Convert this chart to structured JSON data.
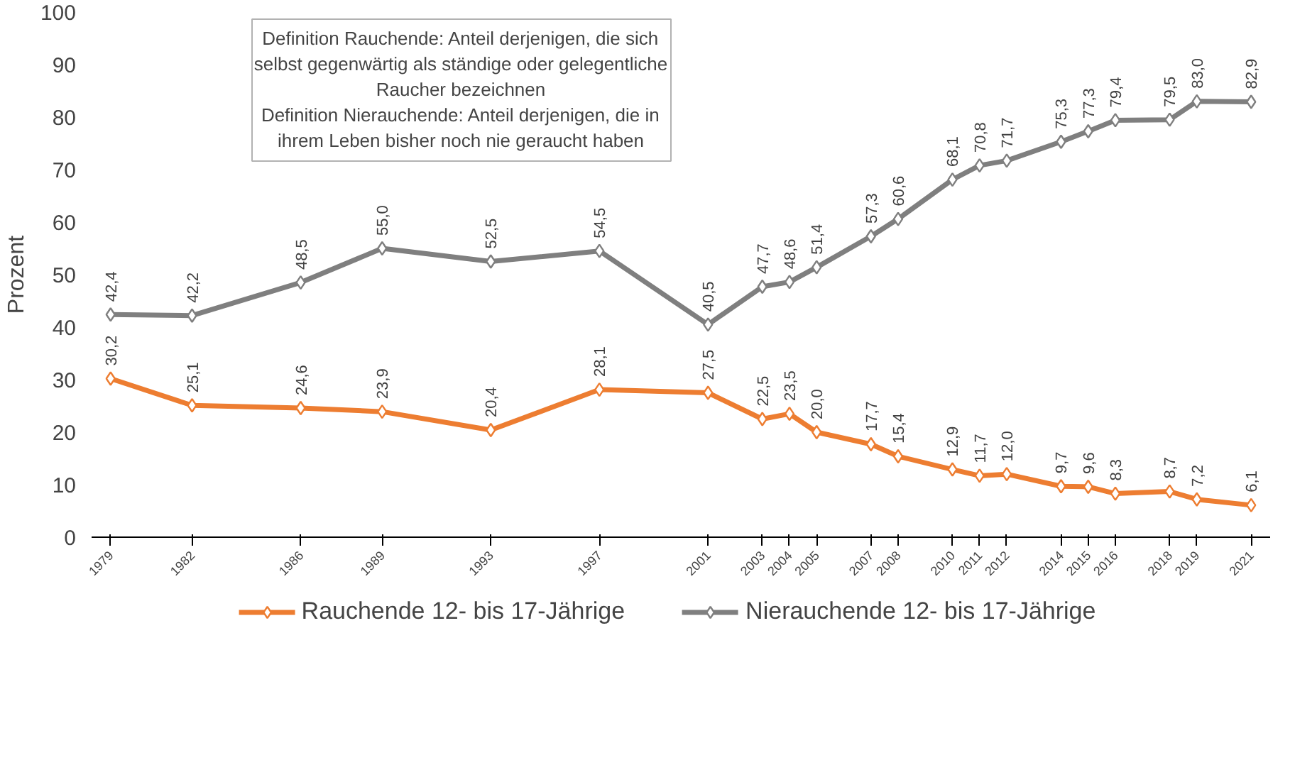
{
  "chart_data": {
    "type": "line",
    "ylabel": "Prozent",
    "annotations": [
      "Definition Rauchende: Anteil derjenigen, die sich selbst gegenwärtig als ständige oder gelegentliche Raucher bezeichnen",
      "Definition Nierauchende: Anteil derjenigen, die in ihrem Leben bisher noch nie geraucht haben"
    ],
    "x": [
      1979,
      1982,
      1986,
      1989,
      1993,
      1997,
      2001,
      2003,
      2004,
      2005,
      2007,
      2008,
      2010,
      2011,
      2012,
      2014,
      2015,
      2016,
      2018,
      2019,
      2021
    ],
    "xlim": [
      1978.3,
      2021.7
    ],
    "xticks": [
      1979,
      1982,
      1986,
      1989,
      1993,
      1997,
      2001,
      2003,
      2004,
      2005,
      2007,
      2008,
      2010,
      2011,
      2012,
      2014,
      2015,
      2016,
      2018,
      2019,
      2021
    ],
    "ylim": [
      0,
      100
    ],
    "yticks": [
      0,
      10,
      20,
      30,
      40,
      50,
      60,
      70,
      80,
      90,
      100
    ],
    "grid": false,
    "legend": "bottom",
    "marker": "diamond",
    "line_style": "solid",
    "series": [
      {
        "name": "Rauchende 12- bis 17-Jährige",
        "color": "#ed7d31",
        "values": [
          30.2,
          25.1,
          24.6,
          23.9,
          20.4,
          28.1,
          27.5,
          22.5,
          23.5,
          20.0,
          17.7,
          15.4,
          12.9,
          11.7,
          12.0,
          9.7,
          9.6,
          8.3,
          8.7,
          7.2,
          6.1
        ],
        "value_labels": [
          "30,2",
          "25,1",
          "24,6",
          "23,9",
          "20,4",
          "28,1",
          "27,5",
          "22,5",
          "23,5",
          "20,0",
          "17,7",
          "15,4",
          "12,9",
          "11,7",
          "12,0",
          "9,7",
          "9,6",
          "8,3",
          "8,7",
          "7,2",
          "6,1"
        ]
      },
      {
        "name": "Nierauchende 12- bis 17-Jährige",
        "color": "#7f7f7f",
        "values": [
          42.4,
          42.2,
          48.5,
          55.0,
          52.5,
          54.5,
          40.5,
          47.7,
          48.6,
          51.4,
          57.3,
          60.6,
          68.1,
          70.8,
          71.7,
          75.3,
          77.3,
          79.4,
          79.5,
          83.0,
          82.9
        ],
        "value_labels": [
          "42,4",
          "42,2",
          "48,5",
          "55,0",
          "52,5",
          "54,5",
          "40,5",
          "47,7",
          "48,6",
          "51,4",
          "57,3",
          "60,6",
          "68,1",
          "70,8",
          "71,7",
          "75,3",
          "77,3",
          "79,4",
          "79,5",
          "83,0",
          "82,9"
        ]
      }
    ]
  }
}
